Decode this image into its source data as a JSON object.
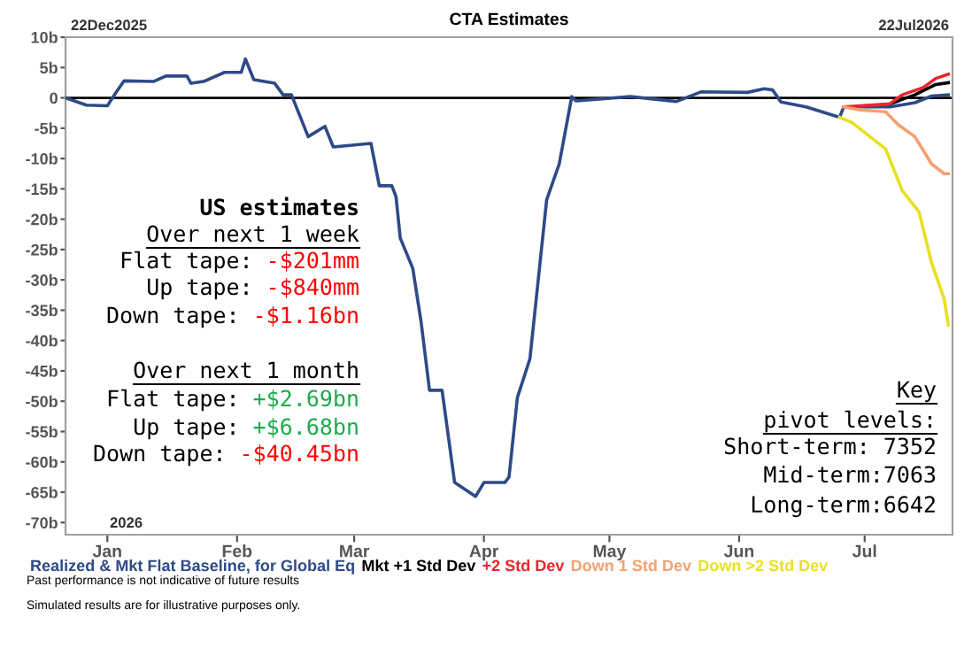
{
  "chart_data": {
    "type": "line",
    "title": "CTA Estimates",
    "xlim": [
      "2025-12-22",
      "2026-07-22"
    ],
    "xticks": [
      {
        "value": "2026-01-01",
        "label": "Jan"
      },
      {
        "value": "2026-02-01",
        "label": "Feb"
      },
      {
        "value": "2026-03-01",
        "label": "Mar"
      },
      {
        "value": "2026-04-01",
        "label": "Apr"
      },
      {
        "value": "2026-05-01",
        "label": "May"
      },
      {
        "value": "2026-06-01",
        "label": "Jun"
      },
      {
        "value": "2026-07-01",
        "label": "Jul"
      }
    ],
    "ylim": [
      -72,
      10
    ],
    "yticks": [
      {
        "value": 10,
        "label": "10b"
      },
      {
        "value": 5,
        "label": "5b"
      },
      0,
      {
        "value": -5,
        "label": "-5b"
      },
      {
        "value": -10,
        "label": "-10b"
      },
      {
        "value": -15,
        "label": "-15b"
      },
      {
        "value": -20,
        "label": "-20b"
      },
      {
        "value": -25,
        "label": "-25b"
      },
      {
        "value": -30,
        "label": "-30b"
      },
      {
        "value": -35,
        "label": "-35b"
      },
      {
        "value": -40,
        "label": "-40b"
      },
      {
        "value": -45,
        "label": "-45b"
      },
      {
        "value": -50,
        "label": "-50b"
      },
      {
        "value": -55,
        "label": "-55b"
      },
      {
        "value": -60,
        "label": "-60b"
      },
      {
        "value": -65,
        "label": "-65b"
      },
      {
        "value": -70,
        "label": "-70b"
      }
    ],
    "grid": false,
    "legend": "bottom",
    "marker": "none",
    "line_style": "solid",
    "ref_lines": [
      {
        "axis": "y",
        "value": 0,
        "color": "#000000"
      }
    ],
    "series": [
      {
        "name": "Realized & Mkt Flat Baseline, for Global Eq",
        "color": "#2e4a87",
        "x": [
          "2025-12-22",
          "2025-12-27",
          "2026-01-01",
          "2026-01-03",
          "2026-01-05",
          "2026-01-12",
          "2026-01-15",
          "2026-01-20",
          "2026-01-21",
          "2026-01-24",
          "2026-01-29",
          "2026-02-02",
          "2026-02-03",
          "2026-02-05",
          "2026-02-10",
          "2026-02-12",
          "2026-02-14",
          "2026-02-18",
          "2026-02-22",
          "2026-02-24",
          "2026-03-05",
          "2026-03-07",
          "2026-03-10",
          "2026-03-11",
          "2026-03-12",
          "2026-03-15",
          "2026-03-17",
          "2026-03-19",
          "2026-03-22",
          "2026-03-25",
          "2026-03-30",
          "2026-04-01",
          "2026-04-06",
          "2026-04-07",
          "2026-04-09",
          "2026-04-12",
          "2026-04-16",
          "2026-04-19",
          "2026-04-22",
          "2026-04-23",
          "2026-05-06",
          "2026-05-17",
          "2026-05-23",
          "2026-06-03",
          "2026-06-07",
          "2026-06-09",
          "2026-06-11",
          "2026-06-17",
          "2026-06-25",
          "2026-06-26",
          "2026-07-07",
          "2026-07-13",
          "2026-07-17",
          "2026-07-21"
        ],
        "values": [
          0,
          -1.2,
          -1.3,
          0.8,
          2.8,
          2.7,
          3.6,
          3.6,
          2.4,
          2.7,
          4.2,
          4.2,
          6.4,
          3.0,
          2.4,
          0.5,
          0.5,
          -6.4,
          -4.7,
          -8.1,
          -7.5,
          -14.5,
          -14.5,
          -16.3,
          -23.1,
          -28.1,
          -37,
          -48.2,
          -48.2,
          -63.4,
          -65.7,
          -63.4,
          -63.4,
          -62.5,
          -49.4,
          -43,
          -16.8,
          -10.9,
          0.2,
          -0.5,
          0.2,
          -0.6,
          1.0,
          0.9,
          1.5,
          1.3,
          -0.7,
          -1.5,
          -3.2,
          -1.5,
          -1.5,
          -0.8,
          0.3,
          0.5
        ]
      },
      {
        "name": "Mkt +1 Std Dev",
        "color": "#000000",
        "x": [
          "2026-07-07",
          "2026-07-13",
          "2026-07-18",
          "2026-07-21"
        ],
        "values": [
          -1.0,
          0.5,
          2.2,
          2.5
        ]
      },
      {
        "name": "+2 Std Dev",
        "color": "#e8262b",
        "x": [
          "2026-06-26",
          "2026-07-07",
          "2026-07-10",
          "2026-07-15",
          "2026-07-18",
          "2026-07-21"
        ],
        "values": [
          -1.5,
          -1.0,
          0.5,
          1.7,
          3.2,
          3.9
        ]
      },
      {
        "name": "Down 1 Std Dev",
        "color": "#f4a070",
        "x": [
          "2026-06-26",
          "2026-06-30",
          "2026-07-06",
          "2026-07-09",
          "2026-07-13",
          "2026-07-17",
          "2026-07-20",
          "2026-07-21"
        ],
        "values": [
          -1.5,
          -2.0,
          -2.3,
          -4.4,
          -6.4,
          -10.9,
          -12.5,
          -12.5
        ]
      },
      {
        "name": "Down >2 Std Dev",
        "color": "#e8e020",
        "x": [
          "2026-06-25",
          "2026-06-28",
          "2026-07-06",
          "2026-07-10",
          "2026-07-14",
          "2026-07-17",
          "2026-07-20",
          "2026-07-21"
        ],
        "values": [
          -3.2,
          -4.1,
          -8.4,
          -15.3,
          -18.8,
          -27.2,
          -33.1,
          -37.5
        ]
      }
    ],
    "annotations": [
      "22Dec2025",
      "22Jul2026",
      "2026",
      "US estimates",
      "Over next 1 week",
      "Flat tape:",
      "-$201mm",
      "Up tape:",
      "-$840mm",
      "Down tape:",
      "-$1.16bn",
      "Over next 1 month",
      "Flat tape:",
      "+$2.69bn",
      "Up tape:",
      "+$6.68bn",
      "Down tape:",
      "-$40.45bn",
      "Key",
      "pivot levels:",
      "Short-term: 7352",
      "Mid-term:7063",
      "Long-term:6642",
      "Past performance is not indicative of future results",
      "Simulated results are for illustrative purposes only."
    ]
  }
}
